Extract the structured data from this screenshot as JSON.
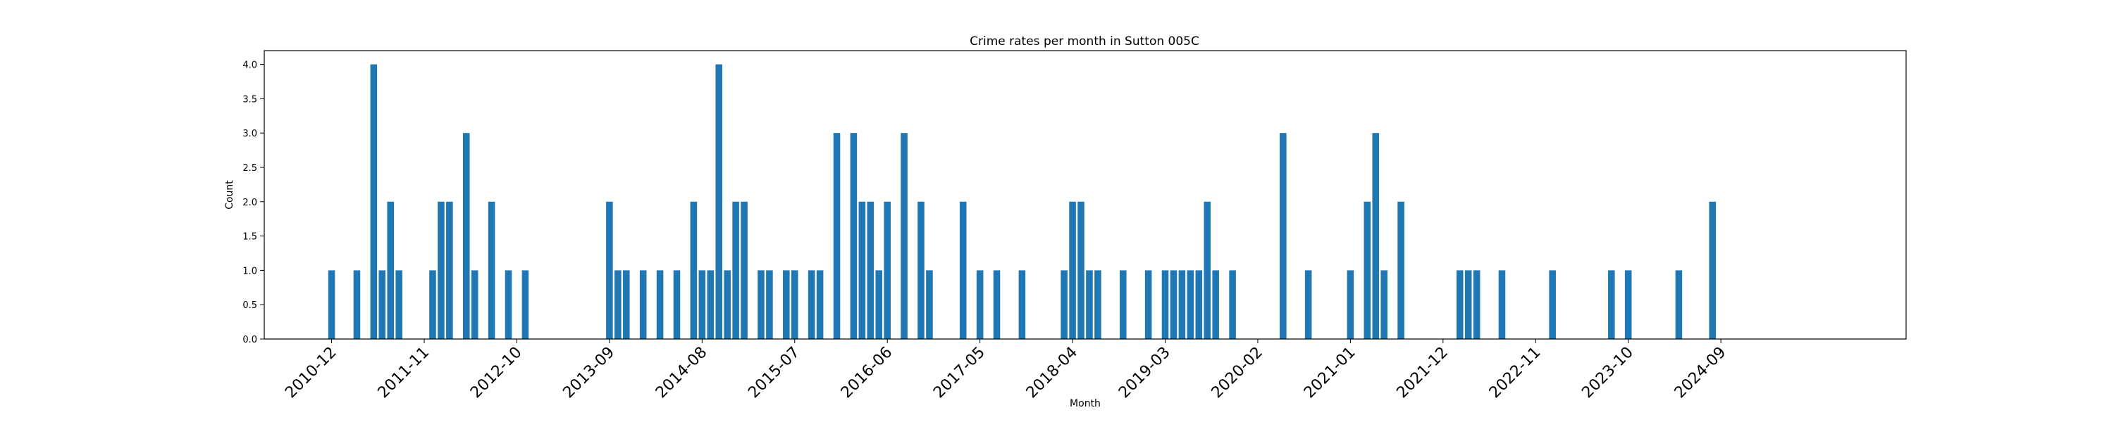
{
  "chart_data": {
    "type": "bar",
    "title": "Crime rates per month in Sutton 005C",
    "xlabel": "Month",
    "ylabel": "Count",
    "ylim": [
      0,
      4.2
    ],
    "yticks": [
      0.0,
      0.5,
      1.0,
      1.5,
      2.0,
      2.5,
      3.0,
      3.5,
      4.0
    ],
    "ytick_labels": [
      "0.0",
      "0.5",
      "1.0",
      "1.5",
      "2.0",
      "2.5",
      "3.0",
      "3.5",
      "4.0"
    ],
    "xlim": [
      "2010-04",
      "2026-07"
    ],
    "xtick_labels": [
      "2010-12",
      "2011-11",
      "2012-10",
      "2013-09",
      "2014-08",
      "2015-07",
      "2016-06",
      "2017-05",
      "2018-04",
      "2019-03",
      "2020-02",
      "2021-01",
      "2021-12",
      "2022-11",
      "2023-10",
      "2024-09"
    ],
    "grid": false,
    "legend": "none",
    "bar_color": "#1f77b4",
    "categories": [
      "2010-12",
      "2011-03",
      "2011-05",
      "2011-06",
      "2011-07",
      "2011-08",
      "2011-12",
      "2012-01",
      "2012-02",
      "2012-04",
      "2012-05",
      "2012-07",
      "2012-09",
      "2012-11",
      "2013-09",
      "2013-10",
      "2013-11",
      "2014-01",
      "2014-03",
      "2014-05",
      "2014-07",
      "2014-08",
      "2014-09",
      "2014-10",
      "2014-11",
      "2014-12",
      "2015-01",
      "2015-03",
      "2015-04",
      "2015-06",
      "2015-07",
      "2015-09",
      "2015-10",
      "2015-12",
      "2016-02",
      "2016-03",
      "2016-04",
      "2016-05",
      "2016-06",
      "2016-08",
      "2016-10",
      "2016-11",
      "2017-03",
      "2017-05",
      "2017-07",
      "2017-10",
      "2018-03",
      "2018-04",
      "2018-05",
      "2018-06",
      "2018-07",
      "2018-10",
      "2019-01",
      "2019-03",
      "2019-04",
      "2019-05",
      "2019-06",
      "2019-07",
      "2019-08",
      "2019-09",
      "2019-11",
      "2020-05",
      "2020-08",
      "2021-01",
      "2021-03",
      "2021-04",
      "2021-05",
      "2021-07",
      "2022-02",
      "2022-03",
      "2022-04",
      "2022-07",
      "2023-01",
      "2023-08",
      "2023-10",
      "2024-04",
      "2024-08"
    ],
    "values": [
      1,
      1,
      4,
      1,
      2,
      1,
      1,
      2,
      2,
      3,
      1,
      2,
      1,
      1,
      2,
      1,
      1,
      1,
      1,
      1,
      2,
      1,
      1,
      4,
      1,
      2,
      2,
      1,
      1,
      1,
      1,
      1,
      1,
      3,
      3,
      2,
      2,
      1,
      2,
      3,
      2,
      1,
      2,
      1,
      1,
      1,
      1,
      2,
      2,
      1,
      1,
      1,
      1,
      1,
      1,
      1,
      1,
      1,
      2,
      1,
      1,
      3,
      1,
      1,
      2,
      3,
      1,
      2,
      1,
      1,
      1,
      1,
      1,
      1,
      1,
      1,
      2
    ]
  }
}
